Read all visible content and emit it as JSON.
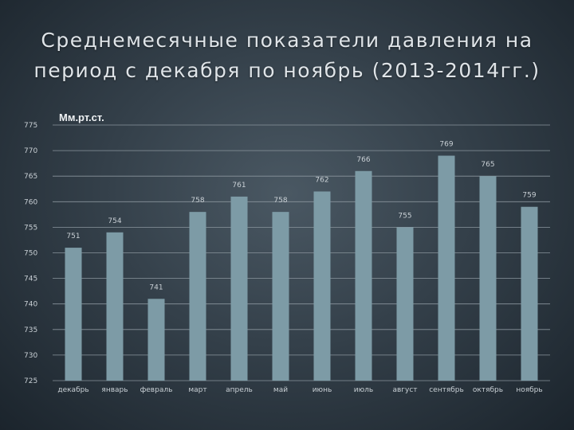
{
  "slide": {
    "title": "Среднемесячные показатели давления на период с декабря по ноябрь (2013-2014гг.)"
  },
  "chart_data": {
    "type": "bar",
    "title": "Среднемесячные показатели давления на период с декабря по ноябрь (2013-2014гг.)",
    "ylabel": "Мм.рт.ст.",
    "xlabel": "",
    "categories": [
      "декабрь",
      "январь",
      "февраль",
      "март",
      "апрель",
      "май",
      "июнь",
      "июль",
      "август",
      "сентябрь",
      "октябрь",
      "ноябрь"
    ],
    "values": [
      751,
      754,
      741,
      758,
      761,
      758,
      762,
      766,
      755,
      769,
      765,
      759
    ],
    "ylim": [
      725,
      775
    ],
    "yticks": [
      725,
      730,
      735,
      740,
      745,
      750,
      755,
      760,
      765,
      770,
      775
    ],
    "grid": true,
    "bar_color": "#7d9ba6",
    "grid_color": "#8a959d",
    "legend": "none"
  }
}
